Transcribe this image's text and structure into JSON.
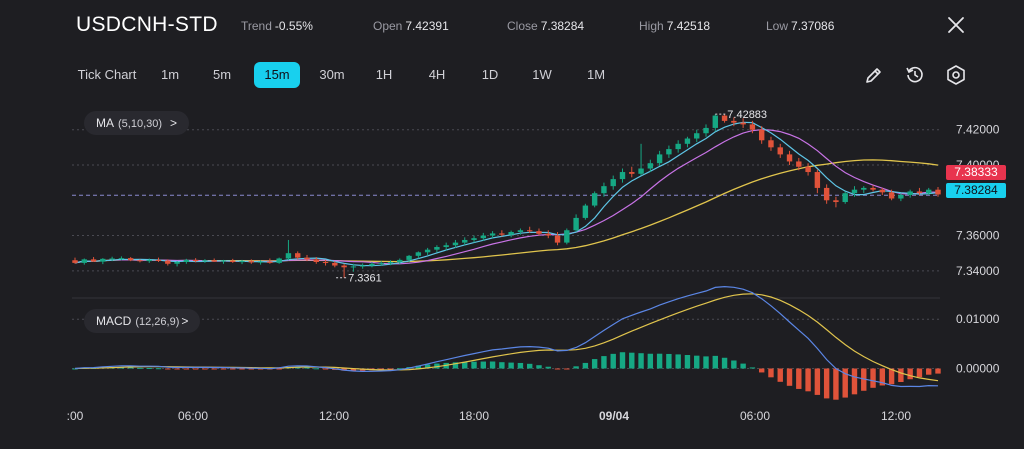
{
  "header": {
    "symbol": "USDCNH-STD",
    "trend_label": "Trend",
    "trend_value": "-0.55%",
    "open_label": "Open",
    "open_value": "7.42391",
    "close_label": "Close",
    "close_value": "7.38284",
    "high_label": "High",
    "high_value": "7.42518",
    "low_label": "Low",
    "low_value": "7.37086",
    "close_icon": "close-icon"
  },
  "timeframes": [
    "Tick Chart",
    "1m",
    "5m",
    "15m",
    "30m",
    "1H",
    "4H",
    "1D",
    "1W",
    "1M"
  ],
  "active_timeframe": "15m",
  "toolbar_icons": [
    "pencil-icon",
    "clock-rewind-icon",
    "settings-hex-icon"
  ],
  "colors": {
    "background": "#1e1e22",
    "up": "#16a884",
    "down": "#e0533a",
    "ma5": "#5ec5e6",
    "ma10": "#c873e6",
    "ma30": "#e0c44d",
    "macd": "#5b86e5",
    "signal": "#e0c44d",
    "accent": "#18d0ee",
    "badge_red": "#e8344e",
    "badge_cyan": "#18d0ee"
  },
  "indicators": {
    "ma": {
      "name": "MA",
      "params": "(5,10,30)",
      "chevron": ">"
    },
    "macd": {
      "name": "MACD",
      "params": "(12,26,9)",
      "chevron": ">"
    }
  },
  "chart_data": [
    {
      "type": "candlestick",
      "title": "USDCNH-STD 15m",
      "y_ticks": [
        "7.42000",
        "7.40000",
        "7.36000",
        "7.34000"
      ],
      "ylim": [
        7.328,
        7.434
      ],
      "x_ticks": [
        ":00",
        "06:00",
        "12:00",
        "18:00",
        "09/04",
        "06:00",
        "12:00"
      ],
      "current_price_labels": [
        "7.38333",
        "7.38284"
      ],
      "annotations": {
        "high": "7.42883",
        "low": "7.3361"
      },
      "grid": true,
      "series": [
        "MA5",
        "MA10",
        "MA30"
      ],
      "candles_ohlc": [
        [
          7.346,
          7.3475,
          7.344,
          7.3445
        ],
        [
          7.3445,
          7.347,
          7.3435,
          7.3465
        ],
        [
          7.3465,
          7.3478,
          7.345,
          7.3452
        ],
        [
          7.3452,
          7.3472,
          7.3438,
          7.3468
        ],
        [
          7.3468,
          7.348,
          7.3455,
          7.347
        ],
        [
          7.347,
          7.3482,
          7.346,
          7.3472
        ],
        [
          7.3472,
          7.3478,
          7.3455,
          7.346
        ],
        [
          7.346,
          7.3465,
          7.3448,
          7.3455
        ],
        [
          7.3455,
          7.347,
          7.3445,
          7.3462
        ],
        [
          7.3462,
          7.3475,
          7.345,
          7.3458
        ],
        [
          7.3458,
          7.3465,
          7.343,
          7.344
        ],
        [
          7.344,
          7.3455,
          7.3425,
          7.345
        ],
        [
          7.345,
          7.3468,
          7.344,
          7.3462
        ],
        [
          7.3462,
          7.3472,
          7.3448,
          7.3455
        ],
        [
          7.3455,
          7.3466,
          7.3445,
          7.346
        ],
        [
          7.346,
          7.347,
          7.345,
          7.3452
        ],
        [
          7.3452,
          7.3462,
          7.344,
          7.3458
        ],
        [
          7.3458,
          7.3468,
          7.3445,
          7.345
        ],
        [
          7.345,
          7.3462,
          7.3438,
          7.3455
        ],
        [
          7.3455,
          7.3465,
          7.344,
          7.3448
        ],
        [
          7.3448,
          7.346,
          7.3435,
          7.3452
        ],
        [
          7.3452,
          7.347,
          7.344,
          7.3445
        ],
        [
          7.3445,
          7.3475,
          7.344,
          7.347
        ],
        [
          7.347,
          7.3575,
          7.346,
          7.35
        ],
        [
          7.35,
          7.351,
          7.3465,
          7.3475
        ],
        [
          7.3475,
          7.349,
          7.3455,
          7.3465
        ],
        [
          7.3465,
          7.3478,
          7.344,
          7.345
        ],
        [
          7.345,
          7.3462,
          7.343,
          7.3445
        ],
        [
          7.3445,
          7.3455,
          7.342,
          7.343
        ],
        [
          7.343,
          7.344,
          7.3361,
          7.342
        ],
        [
          7.342,
          7.344,
          7.3395,
          7.3425
        ],
        [
          7.3425,
          7.3442,
          7.3412,
          7.343
        ],
        [
          7.343,
          7.345,
          7.342,
          7.344
        ],
        [
          7.344,
          7.3455,
          7.3428,
          7.3445
        ],
        [
          7.3445,
          7.346,
          7.3432,
          7.345
        ],
        [
          7.345,
          7.347,
          7.3438,
          7.3462
        ],
        [
          7.3462,
          7.349,
          7.345,
          7.3485
        ],
        [
          7.3485,
          7.351,
          7.347,
          7.3505
        ],
        [
          7.3505,
          7.353,
          7.349,
          7.352
        ],
        [
          7.352,
          7.3545,
          7.3505,
          7.3535
        ],
        [
          7.3535,
          7.356,
          7.3515,
          7.3545
        ],
        [
          7.3545,
          7.3575,
          7.353,
          7.356
        ],
        [
          7.356,
          7.359,
          7.3545,
          7.3575
        ],
        [
          7.3575,
          7.36,
          7.356,
          7.3585
        ],
        [
          7.3585,
          7.3615,
          7.357,
          7.36
        ],
        [
          7.36,
          7.3625,
          7.3585,
          7.3612
        ],
        [
          7.3612,
          7.363,
          7.3595,
          7.3605
        ],
        [
          7.3605,
          7.3628,
          7.359,
          7.362
        ],
        [
          7.362,
          7.364,
          7.3605,
          7.363
        ],
        [
          7.363,
          7.365,
          7.3615,
          7.3625
        ],
        [
          7.3625,
          7.364,
          7.36,
          7.361
        ],
        [
          7.361,
          7.363,
          7.3585,
          7.36
        ],
        [
          7.36,
          7.362,
          7.3545,
          7.356
        ],
        [
          7.356,
          7.364,
          7.355,
          7.363
        ],
        [
          7.363,
          7.372,
          7.362,
          7.37
        ],
        [
          7.37,
          7.378,
          7.369,
          7.377
        ],
        [
          7.377,
          7.385,
          7.376,
          7.384
        ],
        [
          7.384,
          7.39,
          7.382,
          7.388
        ],
        [
          7.388,
          7.394,
          7.386,
          7.392
        ],
        [
          7.392,
          7.398,
          7.39,
          7.396
        ],
        [
          7.396,
          7.399,
          7.393,
          7.395
        ],
        [
          7.395,
          7.412,
          7.394,
          7.398
        ],
        [
          7.398,
          7.403,
          7.396,
          7.401
        ],
        [
          7.401,
          7.408,
          7.3995,
          7.406
        ],
        [
          7.406,
          7.411,
          7.404,
          7.409
        ],
        [
          7.409,
          7.414,
          7.407,
          7.412
        ],
        [
          7.412,
          7.416,
          7.41,
          7.415
        ],
        [
          7.415,
          7.42,
          7.413,
          7.418
        ],
        [
          7.418,
          7.423,
          7.416,
          7.421
        ],
        [
          7.421,
          7.4288,
          7.419,
          7.428
        ],
        [
          7.428,
          7.4288,
          7.424,
          7.425
        ],
        [
          7.425,
          7.427,
          7.422,
          7.424
        ],
        [
          7.424,
          7.4265,
          7.421,
          7.423
        ],
        [
          7.423,
          7.425,
          7.418,
          7.42
        ],
        [
          7.42,
          7.422,
          7.412,
          7.414
        ],
        [
          7.414,
          7.416,
          7.408,
          7.41
        ],
        [
          7.41,
          7.412,
          7.404,
          7.406
        ],
        [
          7.406,
          7.408,
          7.4,
          7.402
        ],
        [
          7.402,
          7.404,
          7.397,
          7.399
        ],
        [
          7.399,
          7.401,
          7.394,
          7.396
        ],
        [
          7.396,
          7.3975,
          7.384,
          7.387
        ],
        [
          7.387,
          7.389,
          7.378,
          7.38
        ],
        [
          7.38,
          7.382,
          7.376,
          7.379
        ],
        [
          7.379,
          7.385,
          7.378,
          7.384
        ],
        [
          7.384,
          7.388,
          7.382,
          7.386
        ],
        [
          7.386,
          7.388,
          7.384,
          7.387
        ],
        [
          7.387,
          7.3885,
          7.385,
          7.386
        ],
        [
          7.386,
          7.387,
          7.383,
          7.3845
        ],
        [
          7.3845,
          7.386,
          7.38,
          7.381
        ],
        [
          7.381,
          7.384,
          7.3795,
          7.383
        ],
        [
          7.383,
          7.386,
          7.3815,
          7.385
        ],
        [
          7.385,
          7.387,
          7.383,
          7.384
        ],
        [
          7.384,
          7.387,
          7.383,
          7.386
        ],
        [
          7.386,
          7.3875,
          7.382,
          7.3833
        ]
      ]
    },
    {
      "type": "macd",
      "title": "MACD (12,26,9)",
      "y_ticks": [
        "0.01000",
        "0.00000"
      ],
      "ylim": [
        -0.0068,
        0.0135
      ],
      "series": [
        "MACD",
        "Signal",
        "Histogram"
      ]
    }
  ]
}
